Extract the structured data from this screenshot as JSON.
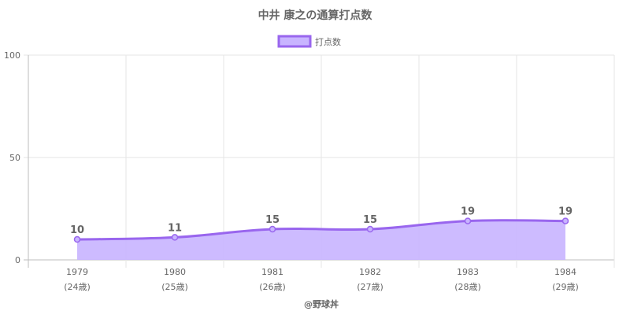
{
  "chart_data": {
    "type": "area",
    "title": "中井 康之の通算打点数",
    "categories": [
      "1979",
      "1980",
      "1981",
      "1982",
      "1983",
      "1984"
    ],
    "category_sublabels": [
      "(24歳)",
      "(25歳)",
      "(26歳)",
      "(27歳)",
      "(28歳)",
      "(29歳)"
    ],
    "series": [
      {
        "name": "打点数",
        "values": [
          10,
          11,
          15,
          15,
          19,
          19
        ]
      }
    ],
    "ylim": [
      0,
      100
    ],
    "yticks": [
      0,
      50,
      100
    ],
    "grid": true,
    "legend": "top-center",
    "colors": {
      "line": "#9966ee",
      "fill": "#c8b4ff"
    }
  },
  "footer": {
    "credit": "@野球丼"
  }
}
